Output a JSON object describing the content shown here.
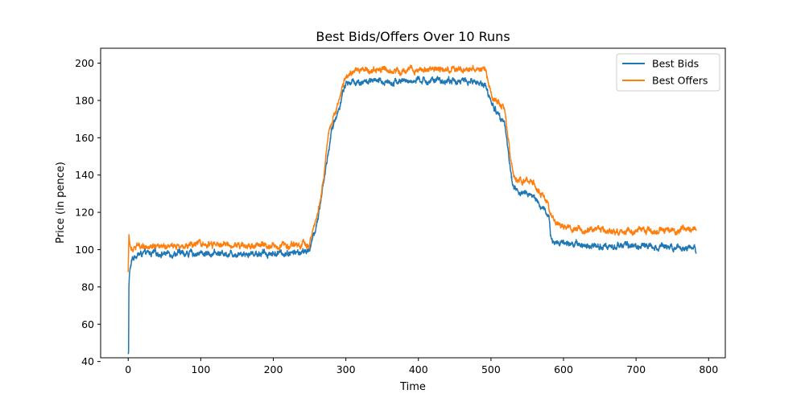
{
  "chart_data": {
    "type": "line",
    "title": "Best Bids/Offers Over 10 Runs",
    "xlabel": "Time",
    "ylabel": "Price (in pence)",
    "xlim": [
      -38,
      823
    ],
    "ylim": [
      42,
      208
    ],
    "xticks": [
      0,
      100,
      200,
      300,
      400,
      500,
      600,
      700,
      800
    ],
    "yticks": [
      40,
      60,
      80,
      100,
      120,
      140,
      160,
      180,
      200
    ],
    "grid": false,
    "legend_position": "top-right",
    "series": [
      {
        "name": "Best Bids",
        "color": "#1f77b4",
        "points": [
          [
            0,
            44
          ],
          [
            0.5,
            45
          ],
          [
            1,
            80
          ],
          [
            1.5,
            85
          ],
          [
            2,
            88
          ],
          [
            3,
            90
          ],
          [
            5,
            94
          ],
          [
            8,
            96
          ],
          [
            10,
            97
          ],
          [
            15,
            97.5
          ],
          [
            30,
            98
          ],
          [
            60,
            98
          ],
          [
            100,
            98
          ],
          [
            150,
            98
          ],
          [
            200,
            98
          ],
          [
            240,
            98.5
          ],
          [
            248,
            99
          ],
          [
            252,
            103
          ],
          [
            258,
            110
          ],
          [
            262,
            118
          ],
          [
            266,
            128
          ],
          [
            270,
            138
          ],
          [
            275,
            150
          ],
          [
            280,
            163
          ],
          [
            285,
            170
          ],
          [
            288,
            172
          ],
          [
            292,
            178
          ],
          [
            296,
            185
          ],
          [
            300,
            189
          ],
          [
            310,
            190
          ],
          [
            350,
            190
          ],
          [
            400,
            190.5
          ],
          [
            450,
            190.5
          ],
          [
            480,
            190
          ],
          [
            490,
            189
          ],
          [
            495,
            185
          ],
          [
            500,
            180
          ],
          [
            505,
            175
          ],
          [
            510,
            173
          ],
          [
            518,
            170
          ],
          [
            522,
            158
          ],
          [
            526,
            145
          ],
          [
            530,
            135
          ],
          [
            540,
            130
          ],
          [
            555,
            130
          ],
          [
            565,
            125
          ],
          [
            570,
            122
          ],
          [
            575,
            120
          ],
          [
            580,
            118
          ],
          [
            582,
            108
          ],
          [
            585,
            104
          ],
          [
            600,
            104
          ],
          [
            620,
            103
          ],
          [
            650,
            102
          ],
          [
            700,
            102
          ],
          [
            750,
            102
          ],
          [
            780,
            101
          ],
          [
            783,
            99
          ]
        ]
      },
      {
        "name": "Best Offers",
        "color": "#ff7f0e",
        "points": [
          [
            0,
            88
          ],
          [
            1,
            108
          ],
          [
            2,
            104
          ],
          [
            4,
            101
          ],
          [
            8,
            102
          ],
          [
            15,
            102
          ],
          [
            50,
            102.5
          ],
          [
            100,
            102.5
          ],
          [
            150,
            102.5
          ],
          [
            200,
            102.5
          ],
          [
            245,
            102.5
          ],
          [
            250,
            103
          ],
          [
            255,
            110
          ],
          [
            260,
            118
          ],
          [
            265,
            128
          ],
          [
            270,
            140
          ],
          [
            273,
            152
          ],
          [
            276,
            163
          ],
          [
            280,
            167
          ],
          [
            286,
            175
          ],
          [
            292,
            182
          ],
          [
            298,
            190
          ],
          [
            305,
            194
          ],
          [
            315,
            196
          ],
          [
            350,
            196
          ],
          [
            400,
            196.5
          ],
          [
            450,
            196.5
          ],
          [
            480,
            196.5
          ],
          [
            492,
            196
          ],
          [
            496,
            190
          ],
          [
            500,
            184
          ],
          [
            508,
            180
          ],
          [
            518,
            176
          ],
          [
            520,
            170
          ],
          [
            524,
            158
          ],
          [
            528,
            145
          ],
          [
            532,
            139
          ],
          [
            545,
            137
          ],
          [
            558,
            136
          ],
          [
            565,
            131
          ],
          [
            570,
            128
          ],
          [
            578,
            127
          ],
          [
            580,
            122
          ],
          [
            585,
            116
          ],
          [
            595,
            113
          ],
          [
            610,
            111
          ],
          [
            650,
            110
          ],
          [
            700,
            110
          ],
          [
            750,
            110
          ],
          [
            770,
            111
          ],
          [
            780,
            111
          ],
          [
            783,
            110
          ]
        ]
      }
    ]
  }
}
